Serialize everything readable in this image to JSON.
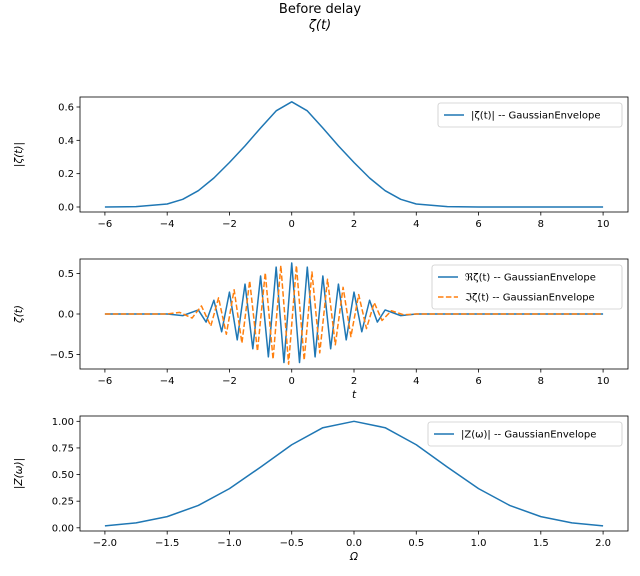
{
  "figure": {
    "title_line1": "Before delay",
    "title_line2": "ζ(t)"
  },
  "colors": {
    "blue": "#1f77b4",
    "orange": "#ff7f0e"
  },
  "chart_data": [
    {
      "type": "line",
      "ylabel": "|ζ(t)|",
      "xlabel": "",
      "xlim": [
        -6.8,
        10.8
      ],
      "ylim": [
        -0.03,
        0.66
      ],
      "xticks": [
        -6,
        -4,
        -2,
        0,
        2,
        4,
        6,
        8,
        10
      ],
      "xtick_labels": [
        "−6",
        "−4",
        "−2",
        "0",
        "2",
        "4",
        "6",
        "8",
        "10"
      ],
      "yticks": [
        0.0,
        0.2,
        0.4,
        0.6
      ],
      "ytick_labels": [
        "0.0",
        "0.2",
        "0.4",
        "0.6"
      ],
      "legend_position": "upper-right",
      "series": [
        {
          "name": "|ζ(t)| -- GaussianEnvelope",
          "color": "#1f77b4",
          "style": "solid",
          "x": [
            -6,
            -5,
            -4,
            -3.5,
            -3,
            -2.5,
            -2,
            -1.5,
            -1,
            -0.5,
            0,
            0.5,
            1,
            1.5,
            2,
            2.5,
            3,
            3.5,
            4,
            5,
            6,
            8,
            10
          ],
          "y": [
            0.0,
            0.002,
            0.018,
            0.046,
            0.098,
            0.174,
            0.267,
            0.367,
            0.474,
            0.577,
            0.631,
            0.577,
            0.474,
            0.367,
            0.267,
            0.174,
            0.098,
            0.046,
            0.018,
            0.002,
            0.0,
            0.0,
            0.0
          ]
        }
      ]
    },
    {
      "type": "line",
      "ylabel": "ζ(t)",
      "xlabel": "t",
      "xlim": [
        -6.8,
        10.8
      ],
      "ylim": [
        -0.68,
        0.68
      ],
      "xticks": [
        -6,
        -4,
        -2,
        0,
        2,
        4,
        6,
        8,
        10
      ],
      "xtick_labels": [
        "−6",
        "−4",
        "−2",
        "0",
        "2",
        "4",
        "6",
        "8",
        "10"
      ],
      "yticks": [
        -0.5,
        0.0,
        0.5
      ],
      "ytick_labels": [
        "−0.5",
        "0.0",
        "0.5"
      ],
      "legend_position": "upper-right",
      "series": [
        {
          "name": "ℜζ(t) -- GaussianEnvelope",
          "color": "#1f77b4",
          "style": "solid",
          "x": [
            -6,
            -4,
            -3.5,
            -3,
            -2.75,
            -2.5,
            -2.25,
            -2,
            -1.75,
            -1.5,
            -1.25,
            -1,
            -0.75,
            -0.5,
            -0.25,
            0,
            0.25,
            0.5,
            0.75,
            1,
            1.25,
            1.5,
            1.75,
            2,
            2.25,
            2.5,
            2.75,
            3,
            3.5,
            4,
            6,
            10
          ],
          "y": [
            0.0,
            0.0,
            -0.02,
            0.05,
            -0.1,
            0.17,
            -0.22,
            0.27,
            -0.32,
            0.37,
            -0.43,
            0.47,
            -0.53,
            0.58,
            -0.6,
            0.63,
            -0.6,
            0.58,
            -0.53,
            0.47,
            -0.43,
            0.37,
            -0.32,
            0.27,
            -0.22,
            0.17,
            -0.1,
            0.05,
            -0.02,
            0.0,
            0.0,
            0.0
          ]
        },
        {
          "name": "ℑζ(t) -- GaussianEnvelope",
          "color": "#ff7f0e",
          "style": "dashed",
          "x": [
            -6,
            -4,
            -3.6,
            -3.2,
            -2.9,
            -2.6,
            -2.35,
            -2.1,
            -1.85,
            -1.6,
            -1.35,
            -1.1,
            -0.85,
            -0.6,
            -0.35,
            -0.1,
            0.15,
            0.4,
            0.65,
            0.9,
            1.15,
            1.4,
            1.65,
            1.9,
            2.15,
            2.4,
            2.65,
            2.9,
            3.2,
            3.6,
            4,
            6,
            10
          ],
          "y": [
            0.0,
            0.0,
            0.02,
            -0.05,
            0.1,
            -0.15,
            0.2,
            -0.25,
            0.3,
            -0.36,
            0.41,
            -0.46,
            0.51,
            -0.56,
            0.6,
            -0.62,
            0.6,
            -0.57,
            0.52,
            -0.48,
            0.43,
            -0.38,
            0.33,
            -0.28,
            0.24,
            -0.18,
            0.14,
            -0.08,
            0.04,
            -0.01,
            0.0,
            0.0,
            0.0
          ]
        }
      ]
    },
    {
      "type": "line",
      "ylabel": "|Z(ω)|",
      "xlabel": "Ω",
      "xlim": [
        -2.2,
        2.2
      ],
      "ylim": [
        -0.03,
        1.05
      ],
      "xticks": [
        -2.0,
        -1.5,
        -1.0,
        -0.5,
        0.0,
        0.5,
        1.0,
        1.5,
        2.0
      ],
      "xtick_labels": [
        "−2.0",
        "−1.5",
        "−1.0",
        "−0.5",
        "0.0",
        "0.5",
        "1.0",
        "1.5",
        "2.0"
      ],
      "yticks": [
        0.0,
        0.25,
        0.5,
        0.75,
        1.0
      ],
      "ytick_labels": [
        "0.00",
        "0.25",
        "0.50",
        "0.75",
        "1.00"
      ],
      "legend_position": "upper-right",
      "series": [
        {
          "name": "|Z(ω)| -- GaussianEnvelope",
          "color": "#1f77b4",
          "style": "solid",
          "x": [
            -2.0,
            -1.75,
            -1.5,
            -1.25,
            -1.0,
            -0.75,
            -0.5,
            -0.25,
            0.0,
            0.25,
            0.5,
            0.75,
            1.0,
            1.25,
            1.5,
            1.75,
            2.0
          ],
          "y": [
            0.018,
            0.046,
            0.105,
            0.21,
            0.368,
            0.57,
            0.78,
            0.94,
            1.0,
            0.94,
            0.78,
            0.57,
            0.368,
            0.21,
            0.105,
            0.046,
            0.018
          ]
        }
      ]
    }
  ]
}
